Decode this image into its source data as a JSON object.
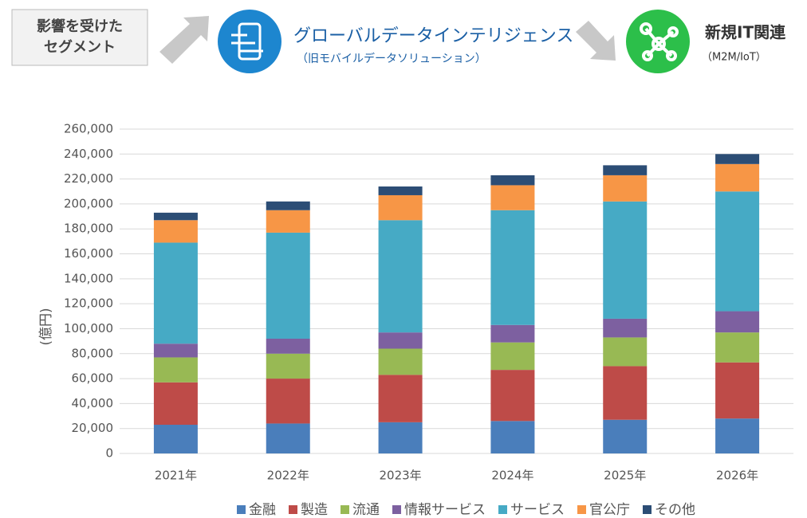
{
  "header": {
    "segment_box": [
      "影響を受けた",
      "セグメント"
    ],
    "item1": {
      "title": "グローバルデータインテリジェンス",
      "subtitle": "（旧モバイルデータソリューション）"
    },
    "item2": {
      "title": "新規IT関連",
      "subtitle": "（M2M/IoT）"
    }
  },
  "chart_data": {
    "type": "stacked_bar",
    "y_label": "(億円)",
    "categories": [
      "2021年",
      "2022年",
      "2023年",
      "2024年",
      "2025年",
      "2026年"
    ],
    "series": [
      {
        "name": "金融",
        "color": "#4a7ebb",
        "values": [
          23000,
          24000,
          25000,
          26000,
          27000,
          28000
        ]
      },
      {
        "name": "製造",
        "color": "#be4b48",
        "values": [
          34000,
          36000,
          38000,
          41000,
          43000,
          45000
        ]
      },
      {
        "name": "流通",
        "color": "#98b954",
        "values": [
          20000,
          20000,
          21000,
          22000,
          23000,
          24000
        ]
      },
      {
        "name": "情報サービス",
        "color": "#7d60a0",
        "values": [
          11000,
          12000,
          13000,
          14000,
          15000,
          17000
        ]
      },
      {
        "name": "サービス",
        "color": "#46aac5",
        "values": [
          81000,
          85000,
          90000,
          92000,
          94000,
          96000
        ]
      },
      {
        "name": "官公庁",
        "color": "#f79646",
        "values": [
          18000,
          18000,
          20000,
          20000,
          21000,
          22000
        ]
      },
      {
        "name": "その他",
        "color": "#2c4d75",
        "values": [
          6000,
          7000,
          7000,
          8000,
          8000,
          8000
        ]
      }
    ],
    "ylim": [
      0,
      260000
    ],
    "yticks": [
      0,
      {
        "value": 20000,
        "label": "20,000"
      },
      {
        "value": 40000,
        "label": "40,000"
      },
      {
        "value": 60000,
        "label": "60,000"
      },
      {
        "value": 80000,
        "label": "80,000"
      },
      {
        "value": 100000,
        "label": "100,000"
      },
      {
        "value": 120000,
        "label": "120,000"
      },
      {
        "value": 140000,
        "label": "140,000"
      },
      {
        "value": 160000,
        "label": "160,000"
      },
      {
        "value": 180000,
        "label": "180,000"
      },
      {
        "value": 200000,
        "label": "200,000"
      },
      {
        "value": 220000,
        "label": "220,000"
      },
      {
        "value": 240000,
        "label": "240,000"
      },
      {
        "value": 260000,
        "label": "260,000"
      }
    ],
    "grid": true,
    "legend": "bottom"
  }
}
